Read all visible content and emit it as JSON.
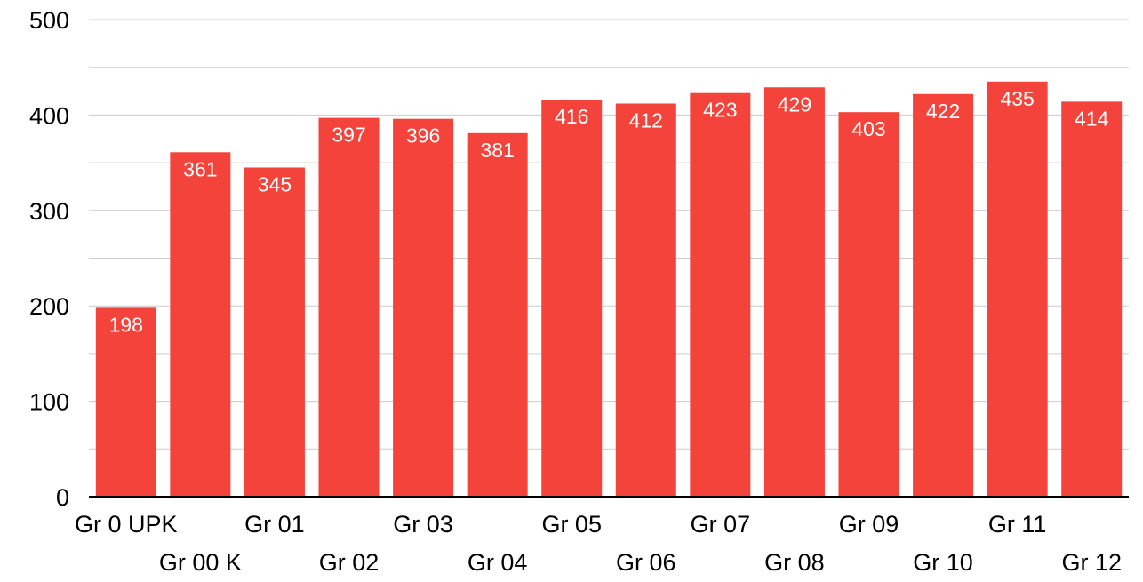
{
  "chart_data": {
    "type": "bar",
    "title": "",
    "xlabel": "",
    "ylabel": "",
    "categories": [
      "Gr 0 UPK",
      "Gr 00 K",
      "Gr 01",
      "Gr 02",
      "Gr 03",
      "Gr 04",
      "Gr 05",
      "Gr 06",
      "Gr 07",
      "Gr 08",
      "Gr 09",
      "Gr 10",
      "Gr 11",
      "Gr 12"
    ],
    "values": [
      198,
      361,
      345,
      397,
      396,
      381,
      416,
      412,
      423,
      429,
      403,
      422,
      435,
      414
    ],
    "value_labels": [
      "198",
      "361",
      "345",
      "397",
      "396",
      "381",
      "416",
      "412",
      "423",
      "429",
      "403",
      "422",
      "435",
      "414"
    ],
    "ylim": [
      0,
      500
    ],
    "y_ticks": [
      0,
      100,
      200,
      300,
      400,
      500
    ],
    "y_tick_labels": [
      "0",
      "100",
      "200",
      "300",
      "400",
      "500"
    ],
    "grid": true,
    "legend": "none",
    "bar_color": "#f4433a",
    "grid_color": "#cccccc",
    "axis_color": "#000000",
    "label_color": "#ffffff",
    "text_color": "#000000"
  }
}
